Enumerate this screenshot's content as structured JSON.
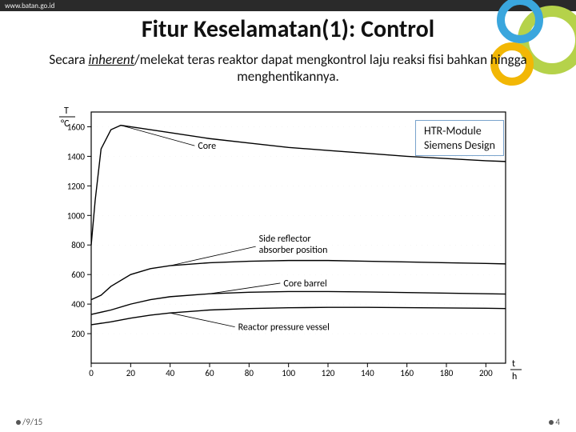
{
  "header": {
    "url": "www.batan.go.id"
  },
  "title": "Fitur Keselamatan(1): Control",
  "subtitle_pre": "Secara ",
  "subtitle_italic": "inherent",
  "subtitle_post": "/melekat teras reaktor dapat mengkontrol laju reaksi fisi bahkan hingga menghentikannya.",
  "annotation": {
    "line1": "HTR-Module",
    "line2": "Siemens Design"
  },
  "footer": {
    "date": "/9/15",
    "page": "4"
  },
  "chart": {
    "type": "line",
    "background_color": "#ffffff",
    "line_color": "#000000",
    "text_color": "#000000",
    "line_width": 1.4,
    "font_size": 11,
    "xlim": [
      0,
      210
    ],
    "ylim": [
      0,
      1700
    ],
    "xticks": [
      0,
      20,
      40,
      60,
      80,
      100,
      120,
      140,
      160,
      180,
      200
    ],
    "yticks": [
      200,
      400,
      600,
      800,
      1000,
      1200,
      1400,
      1600
    ],
    "ylabel_top": "T",
    "ylabel_bot": "°C",
    "xlabel_top": "t",
    "xlabel_bot": "h",
    "series": {
      "core": {
        "label": "Core",
        "label_xy": [
          50,
          1450
        ],
        "pts": [
          [
            0,
            800
          ],
          [
            2,
            1100
          ],
          [
            5,
            1450
          ],
          [
            10,
            1580
          ],
          [
            15,
            1610
          ],
          [
            20,
            1600
          ],
          [
            40,
            1560
          ],
          [
            60,
            1520
          ],
          [
            80,
            1490
          ],
          [
            100,
            1460
          ],
          [
            120,
            1440
          ],
          [
            140,
            1420
          ],
          [
            160,
            1400
          ],
          [
            180,
            1385
          ],
          [
            200,
            1370
          ],
          [
            210,
            1365
          ]
        ]
      },
      "side_reflector": {
        "label": "Side reflector absorber position",
        "label_xy": [
          85,
          790
        ],
        "pts": [
          [
            0,
            430
          ],
          [
            5,
            460
          ],
          [
            10,
            520
          ],
          [
            20,
            600
          ],
          [
            30,
            640
          ],
          [
            40,
            660
          ],
          [
            60,
            680
          ],
          [
            80,
            690
          ],
          [
            100,
            695
          ],
          [
            120,
            695
          ],
          [
            140,
            690
          ],
          [
            160,
            685
          ],
          [
            180,
            680
          ],
          [
            200,
            675
          ],
          [
            210,
            672
          ]
        ]
      },
      "core_barrel": {
        "label": "Core barrel",
        "label_xy": [
          95,
          520
        ],
        "pts": [
          [
            0,
            330
          ],
          [
            10,
            360
          ],
          [
            20,
            400
          ],
          [
            30,
            430
          ],
          [
            40,
            450
          ],
          [
            60,
            470
          ],
          [
            80,
            480
          ],
          [
            100,
            485
          ],
          [
            120,
            485
          ],
          [
            140,
            482
          ],
          [
            160,
            478
          ],
          [
            180,
            474
          ],
          [
            200,
            470
          ],
          [
            210,
            468
          ]
        ]
      },
      "rpv": {
        "label": "Reactor pressure vessel",
        "label_xy": [
          72,
          300
        ],
        "pts": [
          [
            0,
            260
          ],
          [
            10,
            280
          ],
          [
            20,
            305
          ],
          [
            30,
            325
          ],
          [
            40,
            340
          ],
          [
            60,
            360
          ],
          [
            80,
            370
          ],
          [
            100,
            375
          ],
          [
            120,
            378
          ],
          [
            140,
            378
          ],
          [
            160,
            376
          ],
          [
            180,
            374
          ],
          [
            200,
            372
          ],
          [
            210,
            370
          ]
        ]
      }
    },
    "deco_colors": [
      "#b5d24a",
      "#3aa6dd",
      "#f2b705"
    ]
  }
}
